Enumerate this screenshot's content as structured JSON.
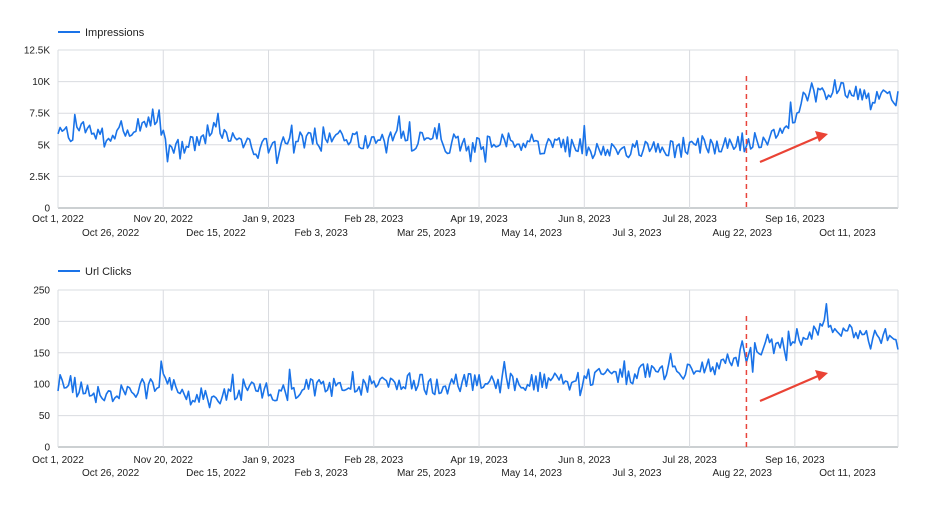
{
  "colors": {
    "series": "#1a73e8",
    "grid": "#dadce0",
    "marker": "#e8453c",
    "arrow": "#ea4335"
  },
  "chart_data": [
    {
      "type": "line",
      "legend": "Impressions",
      "ylim": [
        0,
        12500
      ],
      "yticks": [
        {
          "v": 0,
          "label": "0"
        },
        {
          "v": 2500,
          "label": "2.5K"
        },
        {
          "v": 5000,
          "label": "5K"
        },
        {
          "v": 7500,
          "label": "7.5K"
        },
        {
          "v": 10000,
          "label": "10K"
        },
        {
          "v": 12500,
          "label": "12.5K"
        }
      ],
      "x_start": "Oct 1, 2022",
      "x_end": "Nov 4, 2023",
      "grid": true,
      "marker_date": "Aug 24, 2023",
      "series": [
        {
          "name": "Impressions",
          "weekly_values": [
            6200,
            5500,
            6500,
            6000,
            5400,
            6500,
            5800,
            7000,
            7200,
            4500,
            5200,
            5000,
            5600,
            7000,
            5400,
            5800,
            4300,
            5200,
            4800,
            6000,
            5400,
            5800,
            4800,
            6200,
            5600,
            5200,
            5600,
            4800,
            6500,
            5200,
            5400,
            6000,
            5000,
            5400,
            4800,
            5200,
            5000,
            5600,
            4800,
            5200,
            4600,
            5400,
            4800,
            5000,
            4600,
            4700,
            4800,
            4600,
            4700,
            4800,
            4500,
            4800,
            4600,
            5000,
            4900,
            5000,
            5300,
            5400,
            5600,
            6000,
            6800,
            8200,
            9500,
            8800,
            9600,
            9200,
            8600,
            9000,
            8800,
            7800
          ]
        }
      ]
    },
    {
      "type": "line",
      "legend": "Url Clicks",
      "ylim": [
        0,
        250
      ],
      "yticks": [
        {
          "v": 0,
          "label": "0"
        },
        {
          "v": 50,
          "label": "50"
        },
        {
          "v": 100,
          "label": "100"
        },
        {
          "v": 150,
          "label": "150"
        },
        {
          "v": 200,
          "label": "200"
        },
        {
          "v": 250,
          "label": "250"
        }
      ],
      "x_start": "Oct 1, 2022",
      "x_end": "Nov 4, 2023",
      "grid": true,
      "marker_date": "Aug 24, 2023",
      "series": [
        {
          "name": "Url Clicks",
          "weekly_values": [
            100,
            102,
            92,
            85,
            80,
            88,
            85,
            95,
            100,
            104,
            90,
            88,
            80,
            82,
            78,
            85,
            90,
            88,
            85,
            90,
            92,
            95,
            92,
            98,
            100,
            96,
            100,
            102,
            98,
            105,
            100,
            98,
            102,
            100,
            105,
            103,
            100,
            102,
            105,
            103,
            104,
            106,
            105,
            108,
            106,
            110,
            112,
            115,
            118,
            116,
            118,
            120,
            122,
            125,
            128,
            135,
            140,
            150,
            160,
            165,
            170,
            175,
            185,
            195,
            190,
            185,
            182,
            180,
            178,
            170
          ]
        }
      ]
    }
  ],
  "x_ticks": [
    {
      "date": "Oct 1, 2022",
      "row": 0
    },
    {
      "date": "Oct 26, 2022",
      "row": 1
    },
    {
      "date": "Nov 20, 2022",
      "row": 0
    },
    {
      "date": "Dec 15, 2022",
      "row": 1
    },
    {
      "date": "Jan 9, 2023",
      "row": 0
    },
    {
      "date": "Feb 3, 2023",
      "row": 1
    },
    {
      "date": "Feb 28, 2023",
      "row": 0
    },
    {
      "date": "Mar 25, 2023",
      "row": 1
    },
    {
      "date": "Apr 19, 2023",
      "row": 0
    },
    {
      "date": "May 14, 2023",
      "row": 1
    },
    {
      "date": "Jun 8, 2023",
      "row": 0
    },
    {
      "date": "Jul 3, 2023",
      "row": 1
    },
    {
      "date": "Jul 28, 2023",
      "row": 0
    },
    {
      "date": "Aug 22, 2023",
      "row": 1
    },
    {
      "date": "Sep 16, 2023",
      "row": 0
    },
    {
      "date": "Oct 11, 2023",
      "row": 1
    }
  ]
}
